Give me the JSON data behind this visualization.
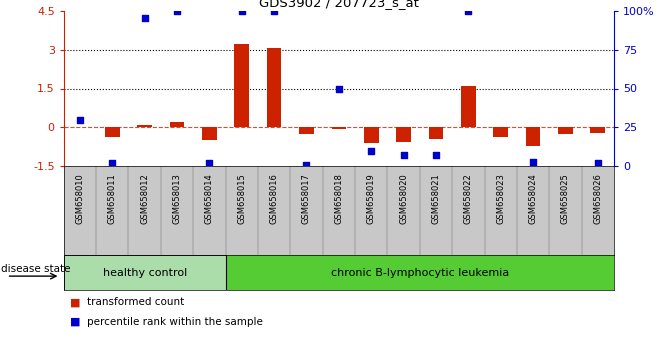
{
  "title": "GDS3902 / 207723_s_at",
  "samples": [
    "GSM658010",
    "GSM658011",
    "GSM658012",
    "GSM658013",
    "GSM658014",
    "GSM658015",
    "GSM658016",
    "GSM658017",
    "GSM658018",
    "GSM658019",
    "GSM658020",
    "GSM658021",
    "GSM658022",
    "GSM658023",
    "GSM658024",
    "GSM658025",
    "GSM658026"
  ],
  "red_values": [
    0.0,
    -0.35,
    0.1,
    0.2,
    -0.5,
    3.2,
    3.05,
    -0.25,
    -0.05,
    -0.6,
    -0.55,
    -0.45,
    1.6,
    -0.35,
    -0.7,
    -0.25,
    -0.2
  ],
  "blue_values_pct": [
    30,
    2,
    95,
    100,
    2,
    100,
    100,
    1,
    50,
    10,
    7,
    7,
    100,
    null,
    3,
    null,
    2
  ],
  "ylim": [
    -1.5,
    4.5
  ],
  "yticks_left": [
    -1.5,
    0,
    1.5,
    3,
    4.5
  ],
  "yticks_right_pct": [
    0,
    25,
    50,
    75,
    100
  ],
  "dotted_lines": [
    1.5,
    3.0
  ],
  "healthy_count": 5,
  "chronic_count": 12,
  "healthy_label": "healthy control",
  "chronic_label": "chronic B-lymphocytic leukemia",
  "disease_state_label": "disease state",
  "red_legend": "transformed count",
  "blue_legend": "percentile rank within the sample",
  "red_color": "#cc2200",
  "blue_color": "#0000cc",
  "bar_width": 0.45,
  "healthy_bg": "#aaddaa",
  "chronic_bg": "#55cc33",
  "label_area_bg": "#c8c8c8"
}
